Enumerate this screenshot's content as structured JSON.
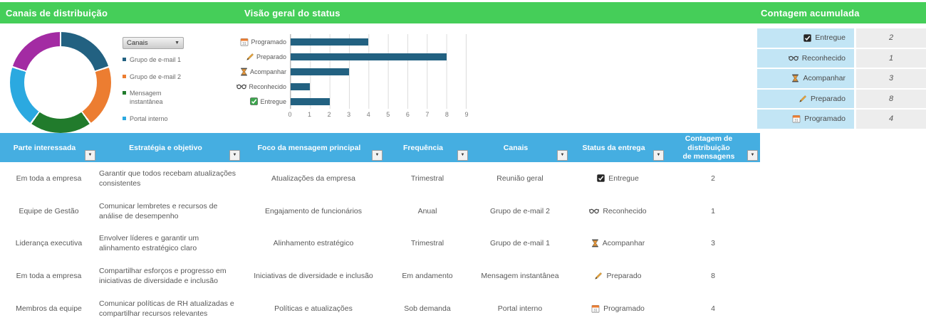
{
  "colors": {
    "header_green": "#45CE59",
    "table_header_blue": "#45AEE1",
    "bar_teal": "#226181",
    "orange": "#EC7D31",
    "dark_green": "#217B2C",
    "light_blue": "#2BA9E0",
    "purple": "#A32BA3",
    "accumulated_label_bg": "#C2E5F5",
    "accumulated_value_bg": "#EDEDED"
  },
  "sections": {
    "channels_title": "Canais de distribuição",
    "status_title": "Visão geral do status",
    "count_title": "Contagem acumulada"
  },
  "channels_panel": {
    "filter_dropdown_label": "Canais",
    "legend": [
      {
        "label": "Grupo de e-mail 1",
        "color": "#226181"
      },
      {
        "label": "Grupo de e-mail 2",
        "color": "#EC7D31"
      },
      {
        "label": "Mensagem instantânea",
        "color": "#217B2C"
      },
      {
        "label": "Portal interno",
        "color": "#2BA9E0"
      }
    ]
  },
  "chart_data": [
    {
      "type": "pie",
      "title": "Canais de distribuição",
      "donut": true,
      "slices": [
        {
          "label": "Grupo de e-mail 1",
          "value": 1,
          "color": "#226181"
        },
        {
          "label": "Grupo de e-mail 2",
          "value": 1,
          "color": "#EC7D31"
        },
        {
          "label": "Mensagem instantânea",
          "value": 1,
          "color": "#217B2C"
        },
        {
          "label": "Portal interno",
          "value": 1,
          "color": "#2BA9E0"
        },
        {
          "label": "",
          "value": 1,
          "color": "#A32BA3"
        }
      ],
      "legend_position": "right"
    },
    {
      "type": "bar",
      "orientation": "horizontal",
      "title": "Visão geral do status",
      "categories": [
        {
          "label": "Programado",
          "icon": "calendar-icon"
        },
        {
          "label": "Preparado",
          "icon": "pencil-icon"
        },
        {
          "label": "Acompanhar",
          "icon": "hourglass-icon"
        },
        {
          "label": "Reconhecido",
          "icon": "glasses-icon"
        },
        {
          "label": "Entregue",
          "icon": "checkbox-green-icon"
        }
      ],
      "values": [
        4,
        8,
        3,
        1,
        2
      ],
      "xlim": [
        0,
        9
      ],
      "ticks": [
        0,
        1,
        2,
        3,
        4,
        5,
        6,
        7,
        8,
        9
      ],
      "bar_color": "#226181",
      "grid": true
    }
  ],
  "accumulated": {
    "rows": [
      {
        "icon": "checkbox-dark-icon",
        "label": "Entregue",
        "value": "2"
      },
      {
        "icon": "glasses-icon",
        "label": "Reconhecido",
        "value": "1"
      },
      {
        "icon": "hourglass-icon",
        "label": "Acompanhar",
        "value": "3"
      },
      {
        "icon": "pencil-icon",
        "label": "Preparado",
        "value": "8"
      },
      {
        "icon": "calendar-icon",
        "label": "Programado",
        "value": "4"
      }
    ]
  },
  "table": {
    "columns": [
      "Parte interessada",
      "Estratégia e objetivo",
      "Foco da mensagem principal",
      "Frequência",
      "Canais",
      "Status da entrega",
      "Contagem de distribuição\nde mensagens"
    ],
    "rows": [
      {
        "stakeholder": "Em toda a empresa",
        "strategy": "Garantir que todos recebam atualizações consistentes",
        "focus": "Atualizações da empresa",
        "frequency": "Trimestral",
        "channel": "Reunião geral",
        "status": {
          "icon": "checkbox-dark-icon",
          "label": "Entregue"
        },
        "count": "2"
      },
      {
        "stakeholder": "Equipe de Gestão",
        "strategy": "Comunicar lembretes e recursos de análise de desempenho",
        "focus": "Engajamento de funcionários",
        "frequency": "Anual",
        "channel": "Grupo de e-mail 2",
        "status": {
          "icon": "glasses-icon",
          "label": "Reconhecido"
        },
        "count": "1"
      },
      {
        "stakeholder": "Liderança executiva",
        "strategy": "Envolver líderes e garantir um alinhamento estratégico claro",
        "focus": "Alinhamento estratégico",
        "frequency": "Trimestral",
        "channel": "Grupo de e-mail 1",
        "status": {
          "icon": "hourglass-icon",
          "label": "Acompanhar"
        },
        "count": "3"
      },
      {
        "stakeholder": "Em toda a empresa",
        "strategy": "Compartilhar esforços e progresso em iniciativas de diversidade e inclusão",
        "focus": "Iniciativas de diversidade e inclusão",
        "frequency": "Em andamento",
        "channel": "Mensagem instantânea",
        "status": {
          "icon": "pencil-icon",
          "label": "Preparado"
        },
        "count": "8"
      },
      {
        "stakeholder": "Membros da equipe",
        "strategy": "Comunicar políticas de RH atualizadas e compartilhar recursos relevantes",
        "focus": "Políticas e atualizações",
        "frequency": "Sob demanda",
        "channel": "Portal interno",
        "status": {
          "icon": "calendar-icon",
          "label": "Programado"
        },
        "count": "4"
      }
    ]
  }
}
